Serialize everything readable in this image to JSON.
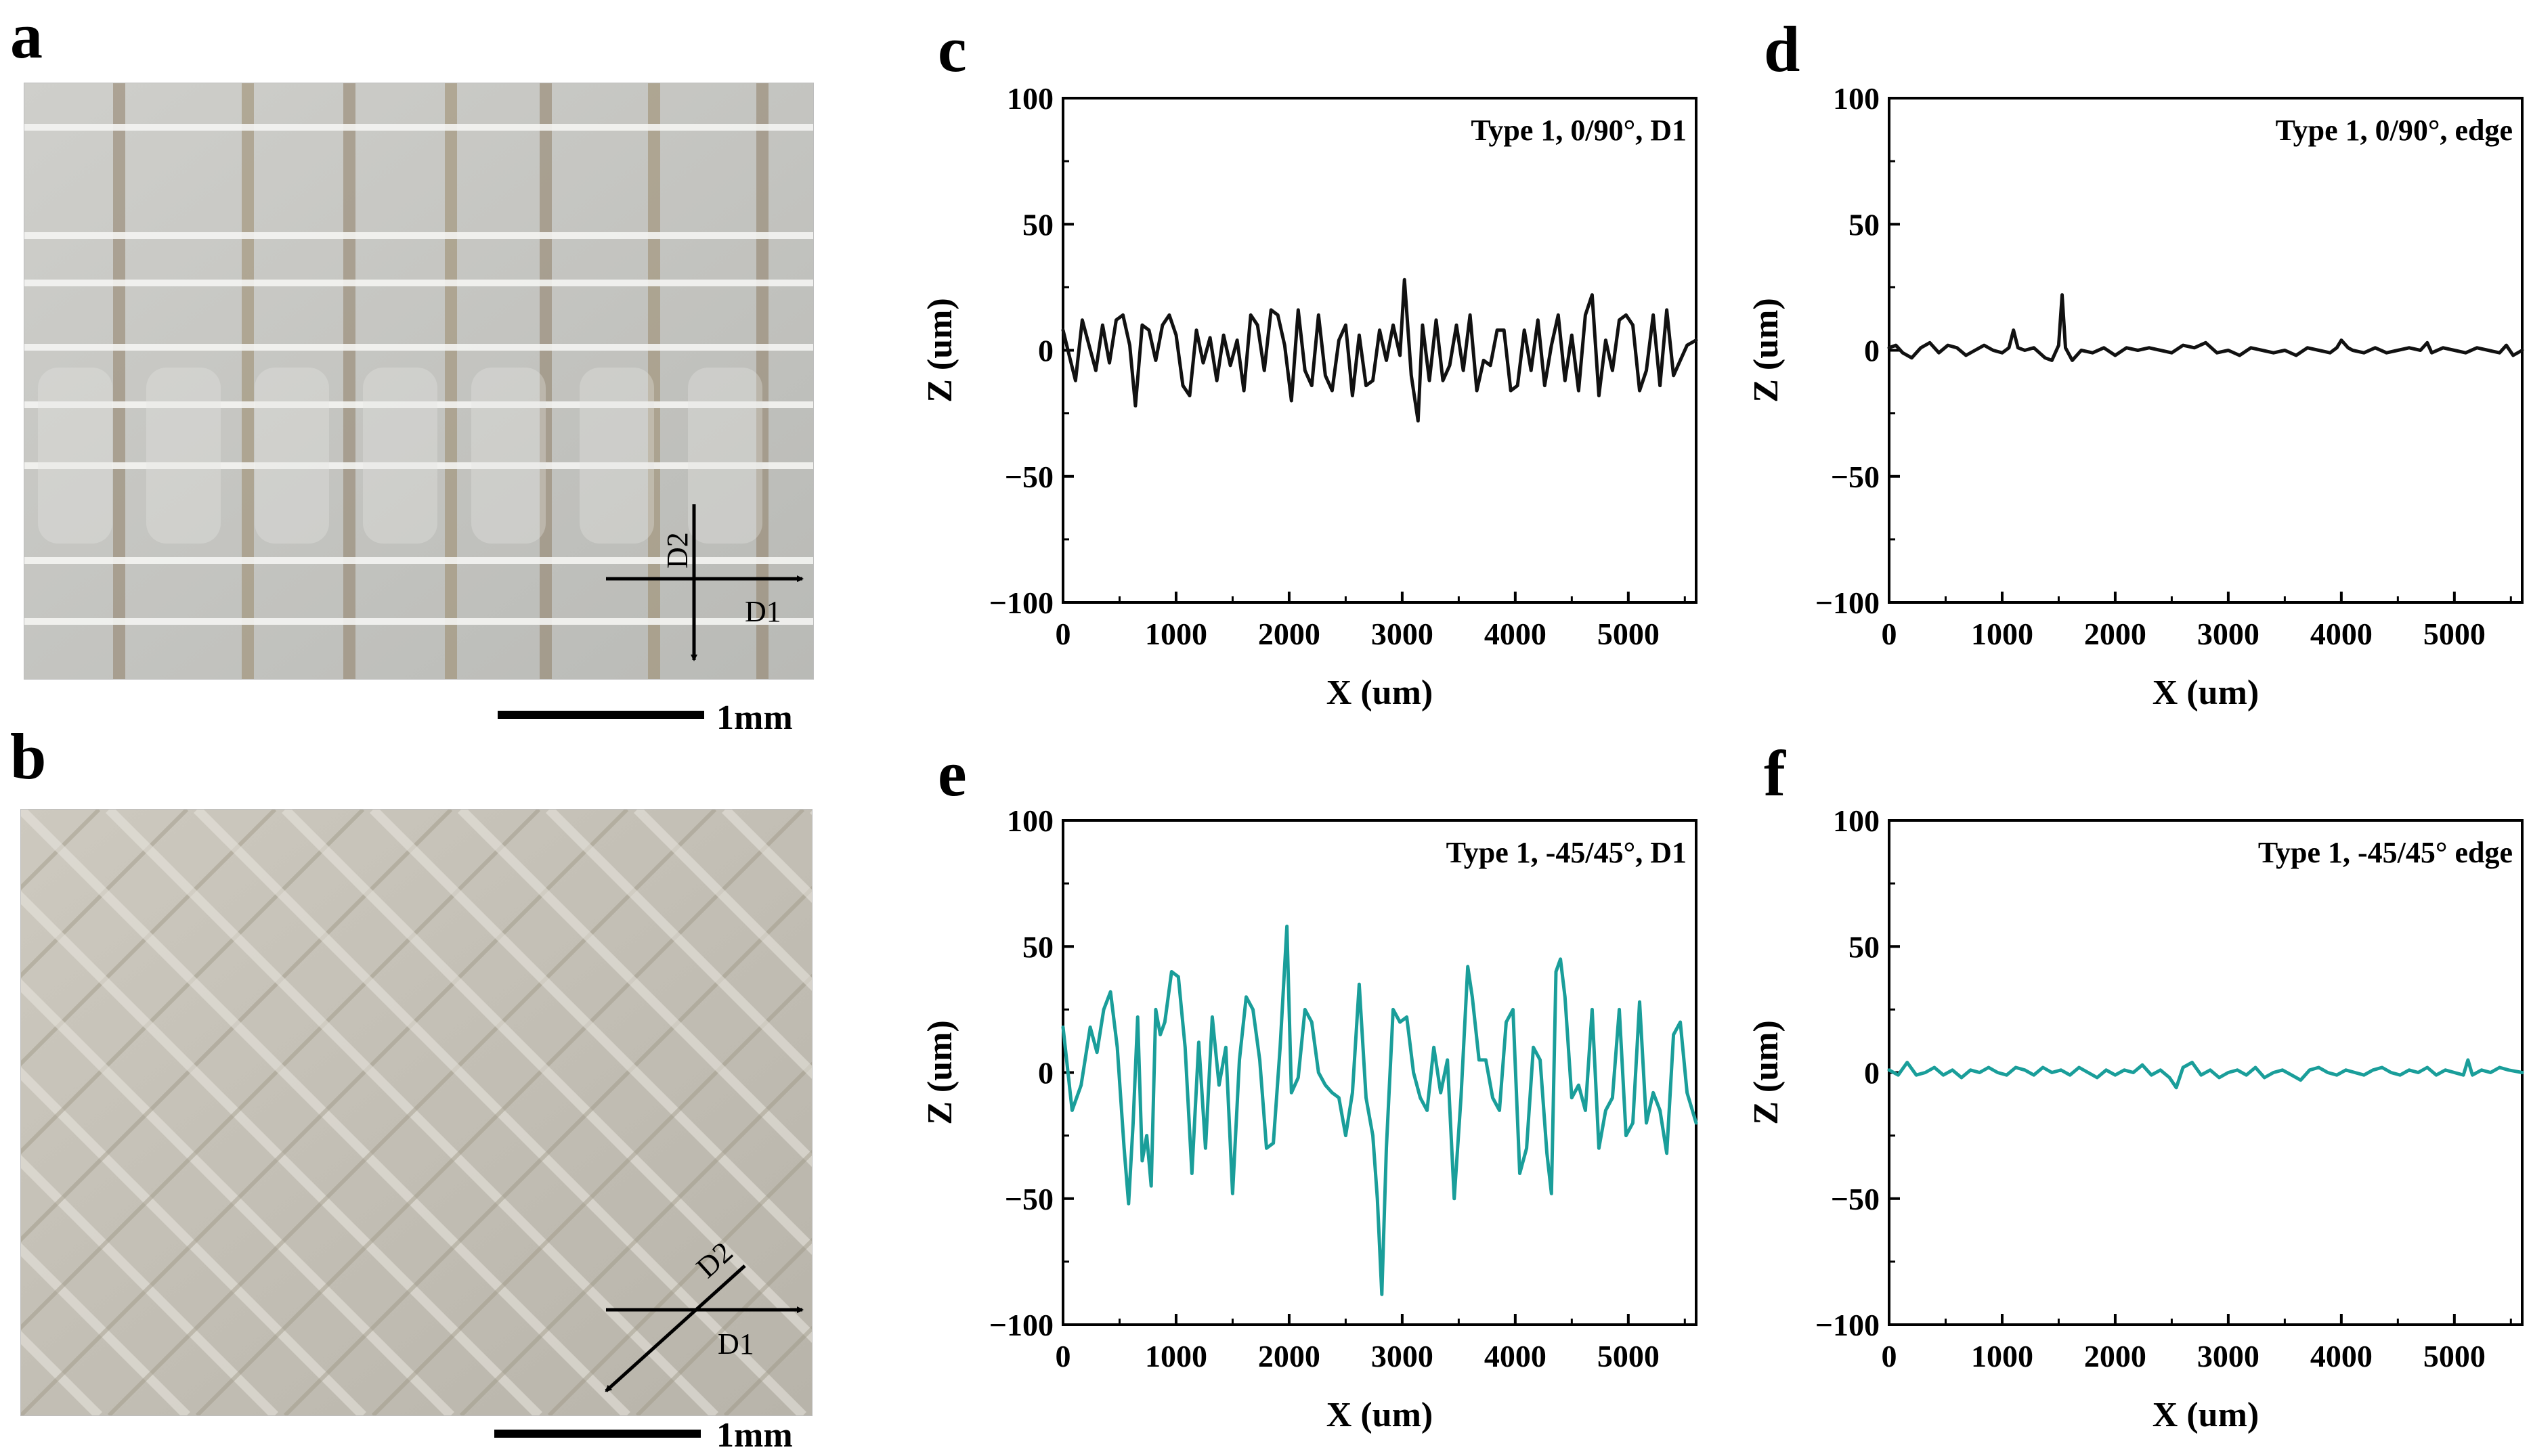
{
  "panels": {
    "a": {
      "letter": "a",
      "scale_label": "1mm",
      "arrow_labels": {
        "d1": "D1",
        "d2": "D2"
      }
    },
    "b": {
      "letter": "b",
      "scale_label": "1mm",
      "arrow_labels": {
        "d1": "D1",
        "d2": "D2"
      }
    }
  },
  "colors": {
    "black_series": "#111111",
    "teal_series": "#1a9e9a",
    "photo_bg": "#c9c9c4"
  },
  "chart_data": [
    {
      "id": "c",
      "letter": "c",
      "type": "line",
      "title": "Type 1, 0/90°, D1",
      "xlabel": "X (um)",
      "ylabel": "Z (um)",
      "xlim": [
        0,
        5600
      ],
      "ylim": [
        -100,
        100
      ],
      "xticks": [
        0,
        1000,
        2000,
        3000,
        4000,
        5000
      ],
      "yticks": [
        100,
        50,
        0,
        -50,
        -100
      ],
      "color": "#111111",
      "series": [
        {
          "x": [
            0,
            60,
            110,
            170,
            230,
            290,
            350,
            410,
            470,
            530,
            590,
            640,
            700,
            760,
            820,
            880,
            940,
            1000,
            1060,
            1120,
            1180,
            1240,
            1300,
            1360,
            1420,
            1480,
            1540,
            1600,
            1660,
            1720,
            1780,
            1840,
            1900,
            1960,
            2020,
            2080,
            2140,
            2200,
            2260,
            2320,
            2380,
            2440,
            2500,
            2560,
            2620,
            2680,
            2740,
            2800,
            2860,
            2920,
            2980,
            3020,
            3080,
            3140,
            3180,
            3240,
            3300,
            3360,
            3420,
            3480,
            3540,
            3600,
            3660,
            3720,
            3780,
            3840,
            3900,
            3960,
            4020,
            4080,
            4140,
            4200,
            4260,
            4320,
            4380,
            4440,
            4500,
            4560,
            4620,
            4680,
            4740,
            4800,
            4860,
            4920,
            4980,
            5040,
            5100,
            5160,
            5220,
            5280,
            5340,
            5400,
            5460,
            5520,
            5600
          ],
          "y": [
            8,
            -3,
            -12,
            12,
            2,
            -8,
            10,
            -5,
            12,
            14,
            2,
            -22,
            10,
            8,
            -4,
            10,
            14,
            6,
            -14,
            -18,
            8,
            -5,
            5,
            -12,
            6,
            -6,
            4,
            -16,
            14,
            10,
            -8,
            16,
            14,
            2,
            -20,
            16,
            -8,
            -14,
            14,
            -10,
            -16,
            4,
            10,
            -18,
            6,
            -14,
            -12,
            8,
            -4,
            10,
            -2,
            28,
            -10,
            -28,
            10,
            -12,
            12,
            -12,
            -6,
            10,
            -8,
            14,
            -16,
            -4,
            -6,
            8,
            8,
            -16,
            -14,
            8,
            -8,
            12,
            -14,
            2,
            14,
            -12,
            6,
            -16,
            14,
            22,
            -18,
            4,
            -8,
            12,
            14,
            10,
            -16,
            -8,
            14,
            -14,
            16,
            -10,
            -4,
            2,
            4
          ]
        }
      ]
    },
    {
      "id": "d",
      "letter": "d",
      "type": "line",
      "title": "Type 1, 0/90°, edge",
      "xlabel": "X (um)",
      "ylabel": "Z (um)",
      "xlim": [
        0,
        5600
      ],
      "ylim": [
        -100,
        100
      ],
      "xticks": [
        0,
        1000,
        2000,
        3000,
        4000,
        5000
      ],
      "yticks": [
        100,
        50,
        0,
        -50,
        -100
      ],
      "color": "#111111",
      "series": [
        {
          "x": [
            0,
            60,
            120,
            200,
            280,
            360,
            440,
            520,
            600,
            680,
            760,
            840,
            920,
            1000,
            1060,
            1100,
            1140,
            1200,
            1280,
            1380,
            1440,
            1500,
            1530,
            1560,
            1620,
            1700,
            1800,
            1900,
            2000,
            2100,
            2200,
            2300,
            2400,
            2500,
            2600,
            2700,
            2800,
            2900,
            3000,
            3100,
            3200,
            3300,
            3400,
            3500,
            3600,
            3700,
            3800,
            3900,
            3960,
            4000,
            4060,
            4100,
            4200,
            4300,
            4400,
            4500,
            4600,
            4700,
            4760,
            4800,
            4900,
            5000,
            5100,
            5200,
            5300,
            5400,
            5460,
            5520,
            5600
          ],
          "y": [
            1,
            2,
            -1,
            -3,
            1,
            3,
            -1,
            2,
            1,
            -2,
            0,
            2,
            0,
            -1,
            1,
            8,
            1,
            0,
            1,
            -3,
            -4,
            2,
            22,
            1,
            -4,
            0,
            -1,
            1,
            -2,
            1,
            0,
            1,
            0,
            -1,
            2,
            1,
            3,
            -1,
            0,
            -2,
            1,
            0,
            -1,
            0,
            -2,
            1,
            0,
            -1,
            1,
            4,
            1,
            0,
            -1,
            1,
            -1,
            0,
            1,
            0,
            3,
            -1,
            1,
            0,
            -1,
            1,
            0,
            -1,
            2,
            -2,
            0
          ]
        }
      ]
    },
    {
      "id": "e",
      "letter": "e",
      "type": "line",
      "title": "Type 1, -45/45°, D1",
      "xlabel": "X (um)",
      "ylabel": "Z (um)",
      "xlim": [
        0,
        5600
      ],
      "ylim": [
        -100,
        100
      ],
      "xticks": [
        0,
        1000,
        2000,
        3000,
        4000,
        5000
      ],
      "yticks": [
        100,
        50,
        0,
        -50,
        -100
      ],
      "color": "#1a9e9a",
      "series": [
        {
          "x": [
            0,
            80,
            160,
            240,
            300,
            360,
            420,
            480,
            540,
            580,
            620,
            660,
            700,
            740,
            780,
            820,
            860,
            900,
            960,
            1020,
            1080,
            1140,
            1200,
            1260,
            1320,
            1380,
            1440,
            1500,
            1560,
            1620,
            1680,
            1740,
            1800,
            1860,
            1920,
            1980,
            2020,
            2080,
            2140,
            2200,
            2260,
            2320,
            2380,
            2440,
            2500,
            2560,
            2620,
            2680,
            2740,
            2780,
            2820,
            2860,
            2920,
            2980,
            3040,
            3100,
            3160,
            3220,
            3280,
            3340,
            3400,
            3460,
            3520,
            3580,
            3620,
            3680,
            3740,
            3800,
            3860,
            3920,
            3980,
            4040,
            4100,
            4160,
            4220,
            4280,
            4320,
            4360,
            4400,
            4440,
            4500,
            4560,
            4620,
            4680,
            4740,
            4800,
            4860,
            4920,
            4980,
            5040,
            5100,
            5160,
            5220,
            5280,
            5340,
            5400,
            5460,
            5520,
            5600
          ],
          "y": [
            18,
            -15,
            -5,
            18,
            8,
            25,
            32,
            10,
            -30,
            -52,
            -20,
            22,
            -35,
            -25,
            -45,
            25,
            15,
            20,
            40,
            38,
            10,
            -40,
            12,
            -30,
            22,
            -5,
            10,
            -48,
            5,
            30,
            25,
            5,
            -30,
            -28,
            10,
            58,
            -8,
            -2,
            25,
            20,
            0,
            -5,
            -8,
            -10,
            -25,
            -8,
            35,
            -10,
            -25,
            -50,
            -88,
            -30,
            25,
            20,
            22,
            0,
            -10,
            -15,
            10,
            -8,
            5,
            -50,
            -10,
            42,
            30,
            5,
            5,
            -10,
            -15,
            20,
            25,
            -40,
            -30,
            10,
            5,
            -32,
            -48,
            40,
            45,
            30,
            -10,
            -5,
            -15,
            25,
            -30,
            -15,
            -10,
            25,
            -25,
            -20,
            28,
            -20,
            -8,
            -15,
            -32,
            15,
            20,
            -8,
            -20
          ]
        }
      ]
    },
    {
      "id": "f",
      "letter": "f",
      "type": "line",
      "title": "Type 1, -45/45° edge",
      "xlabel": "X (um)",
      "ylabel": "Z (um)",
      "xlim": [
        0,
        5600
      ],
      "ylim": [
        -100,
        100
      ],
      "xticks": [
        0,
        1000,
        2000,
        3000,
        4000,
        5000
      ],
      "yticks": [
        100,
        50,
        0,
        -50,
        -100
      ],
      "color": "#1a9e9a",
      "series": [
        {
          "x": [
            0,
            80,
            160,
            240,
            320,
            400,
            480,
            560,
            640,
            720,
            800,
            880,
            960,
            1040,
            1120,
            1200,
            1280,
            1360,
            1440,
            1520,
            1600,
            1680,
            1760,
            1840,
            1920,
            2000,
            2080,
            2160,
            2240,
            2320,
            2400,
            2480,
            2540,
            2600,
            2680,
            2760,
            2840,
            2920,
            3000,
            3080,
            3160,
            3240,
            3320,
            3400,
            3480,
            3560,
            3640,
            3720,
            3800,
            3880,
            3960,
            4040,
            4120,
            4200,
            4280,
            4360,
            4440,
            4520,
            4600,
            4680,
            4760,
            4840,
            4920,
            5000,
            5080,
            5120,
            5160,
            5240,
            5320,
            5400,
            5480,
            5600
          ],
          "y": [
            1,
            -1,
            4,
            -1,
            0,
            2,
            -1,
            1,
            -2,
            1,
            0,
            2,
            0,
            -1,
            2,
            1,
            -1,
            2,
            0,
            1,
            -1,
            2,
            0,
            -2,
            1,
            -1,
            1,
            0,
            3,
            -1,
            1,
            -2,
            -6,
            2,
            4,
            -1,
            1,
            -2,
            0,
            1,
            -1,
            2,
            -2,
            0,
            1,
            -1,
            -3,
            1,
            2,
            0,
            -1,
            1,
            0,
            -1,
            1,
            2,
            0,
            -1,
            1,
            0,
            2,
            -1,
            1,
            0,
            -1,
            5,
            -1,
            1,
            0,
            2,
            1,
            0
          ]
        }
      ]
    }
  ]
}
